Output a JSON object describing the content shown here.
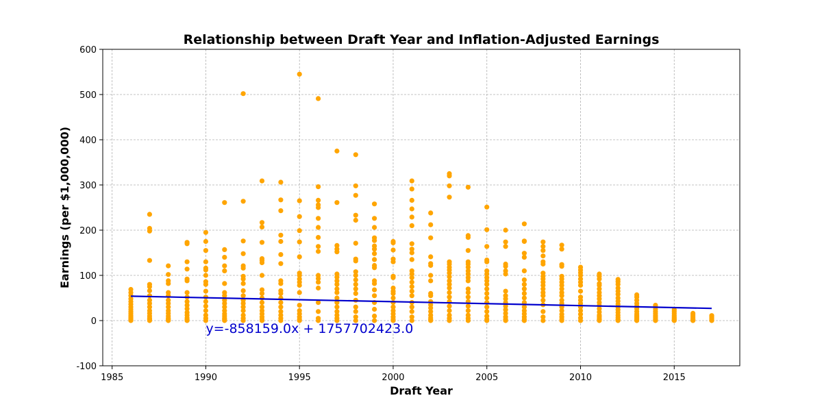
{
  "chart_data": {
    "type": "scatter",
    "title": "Relationship between Draft Year and Inflation-Adjusted Earnings",
    "xlabel": "Draft Year",
    "ylabel": "Earnings (per $1,000,000)",
    "xlim": [
      1984.5,
      2018.5
    ],
    "ylim": [
      -100,
      600
    ],
    "xticks": [
      1985,
      1990,
      1995,
      2000,
      2005,
      2010,
      2015
    ],
    "yticks": [
      -100,
      0,
      100,
      200,
      300,
      400,
      500,
      600
    ],
    "grid": true,
    "point_color": "#FFA500",
    "line_color": "#0000CD",
    "annotation": {
      "text": "y=-858159.0x + 1757702423.0",
      "x": 1990,
      "y": -27,
      "color": "#0000CD"
    },
    "regression_line": {
      "x": [
        1986,
        2017
      ],
      "y": [
        54,
        27
      ]
    },
    "series": [
      {
        "x": [
          1986,
          1986,
          1986,
          1986,
          1986,
          1986,
          1986,
          1986,
          1986,
          1986,
          1986,
          1986,
          1986,
          1986,
          1986,
          1987,
          1987,
          1987,
          1987,
          1987,
          1987,
          1987,
          1987,
          1987,
          1987,
          1987,
          1987,
          1987,
          1987,
          1987,
          1987,
          1987,
          1988,
          1988,
          1988,
          1988,
          1988,
          1988,
          1988,
          1988,
          1988,
          1988,
          1988,
          1988,
          1988,
          1988,
          1988,
          1989,
          1989,
          1989,
          1989,
          1989,
          1989,
          1989,
          1989,
          1989,
          1989,
          1989,
          1989,
          1989,
          1989,
          1989,
          1989,
          1990,
          1990,
          1990,
          1990,
          1990,
          1990,
          1990,
          1990,
          1990,
          1990,
          1990,
          1990,
          1990,
          1990,
          1990,
          1990,
          1990,
          1991,
          1991,
          1991,
          1991,
          1991,
          1991,
          1991,
          1991,
          1991,
          1991,
          1991,
          1991,
          1991,
          1991,
          1991,
          1991,
          1991,
          1992,
          1992,
          1992,
          1992,
          1992,
          1992,
          1992,
          1992,
          1992,
          1992,
          1992,
          1992,
          1992,
          1992,
          1992,
          1992,
          1992,
          1992,
          1993,
          1993,
          1993,
          1993,
          1993,
          1993,
          1993,
          1993,
          1993,
          1993,
          1993,
          1993,
          1993,
          1993,
          1993,
          1993,
          1993,
          1993,
          1994,
          1994,
          1994,
          1994,
          1994,
          1994,
          1994,
          1994,
          1994,
          1994,
          1994,
          1994,
          1994,
          1994,
          1994,
          1994,
          1994,
          1994,
          1995,
          1995,
          1995,
          1995,
          1995,
          1995,
          1995,
          1995,
          1995,
          1995,
          1995,
          1995,
          1995,
          1995,
          1995,
          1995,
          1995,
          1995,
          1996,
          1996,
          1996,
          1996,
          1996,
          1996,
          1996,
          1996,
          1996,
          1996,
          1996,
          1996,
          1996,
          1996,
          1996,
          1996,
          1996,
          1996,
          1997,
          1997,
          1997,
          1997,
          1997,
          1997,
          1997,
          1997,
          1997,
          1997,
          1997,
          1997,
          1997,
          1997,
          1997,
          1997,
          1997,
          1997,
          1998,
          1998,
          1998,
          1998,
          1998,
          1998,
          1998,
          1998,
          1998,
          1998,
          1998,
          1998,
          1998,
          1998,
          1998,
          1998,
          1998,
          1998,
          1998,
          1999,
          1999,
          1999,
          1999,
          1999,
          1999,
          1999,
          1999,
          1999,
          1999,
          1999,
          1999,
          1999,
          1999,
          1999,
          1999,
          1999,
          1999,
          1999,
          2000,
          2000,
          2000,
          2000,
          2000,
          2000,
          2000,
          2000,
          2000,
          2000,
          2000,
          2000,
          2000,
          2000,
          2000,
          2000,
          2000,
          2000,
          2001,
          2001,
          2001,
          2001,
          2001,
          2001,
          2001,
          2001,
          2001,
          2001,
          2001,
          2001,
          2001,
          2001,
          2001,
          2001,
          2001,
          2001,
          2001,
          2001,
          2001,
          2001,
          2002,
          2002,
          2002,
          2002,
          2002,
          2002,
          2002,
          2002,
          2002,
          2002,
          2002,
          2002,
          2002,
          2002,
          2002,
          2002,
          2002,
          2002,
          2003,
          2003,
          2003,
          2003,
          2003,
          2003,
          2003,
          2003,
          2003,
          2003,
          2003,
          2003,
          2003,
          2003,
          2003,
          2003,
          2003,
          2003,
          2003,
          2003,
          2003,
          2004,
          2004,
          2004,
          2004,
          2004,
          2004,
          2004,
          2004,
          2004,
          2004,
          2004,
          2004,
          2004,
          2004,
          2004,
          2004,
          2004,
          2004,
          2004,
          2004,
          2005,
          2005,
          2005,
          2005,
          2005,
          2005,
          2005,
          2005,
          2005,
          2005,
          2005,
          2005,
          2005,
          2005,
          2005,
          2005,
          2005,
          2005,
          2005,
          2006,
          2006,
          2006,
          2006,
          2006,
          2006,
          2006,
          2006,
          2006,
          2006,
          2006,
          2006,
          2006,
          2006,
          2006,
          2006,
          2006,
          2006,
          2007,
          2007,
          2007,
          2007,
          2007,
          2007,
          2007,
          2007,
          2007,
          2007,
          2007,
          2007,
          2007,
          2007,
          2007,
          2007,
          2007,
          2007,
          2008,
          2008,
          2008,
          2008,
          2008,
          2008,
          2008,
          2008,
          2008,
          2008,
          2008,
          2008,
          2008,
          2008,
          2008,
          2008,
          2008,
          2008,
          2008,
          2009,
          2009,
          2009,
          2009,
          2009,
          2009,
          2009,
          2009,
          2009,
          2009,
          2009,
          2009,
          2009,
          2009,
          2009,
          2009,
          2009,
          2009,
          2009,
          2010,
          2010,
          2010,
          2010,
          2010,
          2010,
          2010,
          2010,
          2010,
          2010,
          2010,
          2010,
          2010,
          2010,
          2010,
          2010,
          2011,
          2011,
          2011,
          2011,
          2011,
          2011,
          2011,
          2011,
          2011,
          2011,
          2011,
          2011,
          2011,
          2011,
          2011,
          2011,
          2011,
          2011,
          2012,
          2012,
          2012,
          2012,
          2012,
          2012,
          2012,
          2012,
          2012,
          2012,
          2012,
          2012,
          2012,
          2012,
          2012,
          2012,
          2012,
          2013,
          2013,
          2013,
          2013,
          2013,
          2013,
          2013,
          2013,
          2013,
          2013,
          2013,
          2013,
          2013,
          2013,
          2014,
          2014,
          2014,
          2014,
          2014,
          2014,
          2014,
          2014,
          2014,
          2014,
          2014,
          2015,
          2015,
          2015,
          2015,
          2015,
          2015,
          2015,
          2015,
          2015,
          2016,
          2016,
          2016,
          2016,
          2016,
          2016,
          2016,
          2016,
          2017,
          2017,
          2017,
          2017,
          2017,
          2017
        ],
        "y": [
          69,
          62,
          55,
          48,
          42,
          36,
          30,
          25,
          20,
          16,
          12,
          8,
          5,
          2,
          0,
          235,
          204,
          198,
          133,
          80,
          75,
          66,
          55,
          45,
          38,
          30,
          22,
          16,
          10,
          5,
          2,
          0,
          121,
          102,
          88,
          82,
          62,
          55,
          45,
          38,
          30,
          22,
          16,
          10,
          5,
          2,
          0,
          173,
          170,
          130,
          114,
          92,
          88,
          62,
          52,
          42,
          34,
          26,
          18,
          12,
          6,
          2,
          0,
          195,
          175,
          155,
          130,
          116,
          112,
          100,
          86,
          80,
          65,
          52,
          42,
          32,
          22,
          12,
          5,
          0,
          261,
          157,
          140,
          121,
          110,
          82,
          62,
          55,
          45,
          38,
          30,
          22,
          15,
          10,
          5,
          2,
          0,
          502,
          264,
          176,
          148,
          121,
          116,
          98,
          92,
          82,
          66,
          55,
          45,
          38,
          30,
          22,
          12,
          5,
          0,
          309,
          217,
          207,
          173,
          137,
          133,
          128,
          100,
          68,
          60,
          50,
          40,
          30,
          22,
          15,
          8,
          3,
          0,
          306,
          267,
          243,
          189,
          175,
          146,
          126,
          88,
          82,
          66,
          60,
          50,
          40,
          30,
          20,
          12,
          5,
          0,
          545,
          265,
          230,
          199,
          174,
          141,
          105,
          100,
          92,
          85,
          78,
          62,
          34,
          22,
          15,
          8,
          3,
          0,
          491,
          296,
          266,
          256,
          250,
          226,
          206,
          184,
          164,
          153,
          100,
          93,
          85,
          72,
          40,
          20,
          5,
          0,
          375,
          261,
          166,
          158,
          152,
          103,
          96,
          88,
          80,
          70,
          62,
          50,
          40,
          30,
          20,
          12,
          5,
          0,
          367,
          298,
          277,
          233,
          222,
          171,
          136,
          132,
          108,
          100,
          90,
          80,
          70,
          60,
          45,
          30,
          20,
          8,
          0,
          258,
          226,
          206,
          183,
          177,
          165,
          158,
          148,
          135,
          122,
          117,
          88,
          82,
          68,
          55,
          40,
          25,
          10,
          0,
          175,
          172,
          156,
          136,
          130,
          98,
          95,
          72,
          65,
          60,
          50,
          40,
          30,
          22,
          15,
          8,
          3,
          0,
          309,
          291,
          266,
          247,
          229,
          210,
          170,
          158,
          150,
          135,
          110,
          103,
          95,
          85,
          75,
          65,
          55,
          40,
          30,
          20,
          8,
          0,
          238,
          212,
          183,
          141,
          126,
          122,
          100,
          88,
          60,
          55,
          42,
          35,
          28,
          20,
          12,
          6,
          2,
          0,
          325,
          320,
          298,
          273,
          130,
          125,
          118,
          112,
          105,
          97,
          88,
          80,
          72,
          62,
          52,
          42,
          32,
          22,
          12,
          5,
          0,
          295,
          188,
          184,
          155,
          130,
          125,
          118,
          110,
          103,
          95,
          88,
          70,
          62,
          52,
          42,
          32,
          22,
          12,
          5,
          0,
          251,
          201,
          164,
          134,
          130,
          110,
          103,
          95,
          88,
          80,
          70,
          60,
          50,
          40,
          30,
          20,
          10,
          3,
          0,
          200,
          174,
          164,
          125,
          120,
          110,
          103,
          65,
          55,
          48,
          40,
          32,
          24,
          16,
          8,
          3,
          1,
          0,
          214,
          176,
          175,
          149,
          140,
          110,
          90,
          80,
          70,
          60,
          50,
          40,
          30,
          22,
          15,
          8,
          3,
          0,
          174,
          164,
          155,
          143,
          130,
          125,
          105,
          98,
          92,
          85,
          78,
          70,
          62,
          55,
          45,
          35,
          20,
          8,
          0,
          167,
          158,
          124,
          120,
          98,
          92,
          85,
          78,
          70,
          62,
          55,
          45,
          38,
          30,
          22,
          14,
          8,
          3,
          0,
          118,
          112,
          106,
          100,
          92,
          85,
          78,
          65,
          52,
          45,
          38,
          30,
          22,
          14,
          6,
          0,
          103,
          98,
          92,
          82,
          78,
          70,
          62,
          55,
          48,
          40,
          33,
          26,
          19,
          12,
          8,
          4,
          2,
          0,
          91,
          86,
          80,
          72,
          65,
          58,
          50,
          43,
          36,
          30,
          24,
          18,
          12,
          7,
          3,
          1,
          0,
          57,
          52,
          45,
          38,
          32,
          26,
          20,
          15,
          11,
          8,
          5,
          3,
          1,
          0,
          34,
          30,
          25,
          20,
          16,
          12,
          9,
          6,
          3,
          1,
          0,
          24,
          20,
          16,
          12,
          8,
          5,
          3,
          1,
          0,
          16,
          13,
          10,
          7,
          4,
          2,
          1,
          0,
          11,
          8,
          5,
          3,
          1,
          0
        ]
      }
    ]
  }
}
